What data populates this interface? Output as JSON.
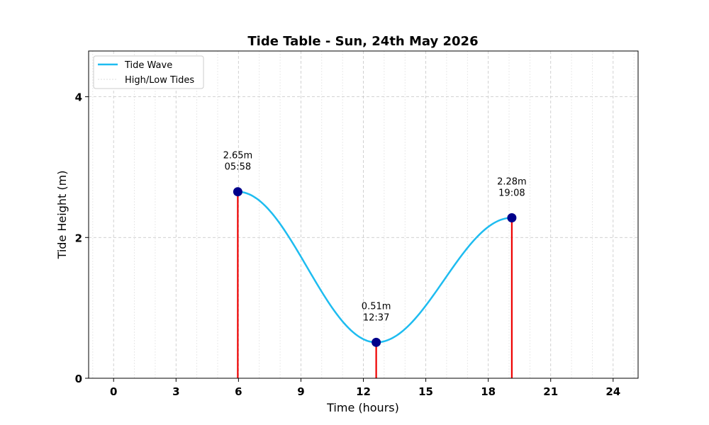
{
  "chart_data": {
    "type": "line",
    "title": "Tide Table - Sun, 24th May 2026",
    "xlabel": "Time (hours)",
    "ylabel": "Tide Height (m)",
    "xlim": [
      -1.2,
      25.2
    ],
    "ylim": [
      0,
      4.65
    ],
    "xticks": [
      0,
      3,
      6,
      9,
      12,
      15,
      18,
      21,
      24
    ],
    "yticks": [
      0,
      2,
      4
    ],
    "minor_xgrid_step": 1,
    "grid": true,
    "legend_position": "top-left",
    "series": [
      {
        "name": "Tide Wave",
        "color": "#1ebcf0"
      },
      {
        "name": "High/Low Tides",
        "color": "#dddddd"
      }
    ],
    "tide_points": [
      {
        "x": 5.967,
        "y": 2.65,
        "height_label": "2.65m",
        "time_label": "05:58"
      },
      {
        "x": 12.617,
        "y": 0.51,
        "height_label": "0.51m",
        "time_label": "12:37"
      },
      {
        "x": 19.133,
        "y": 2.28,
        "height_label": "2.28m",
        "time_label": "19:08"
      }
    ],
    "marker_color": "#00008b",
    "stem_color": "#ee0000"
  }
}
